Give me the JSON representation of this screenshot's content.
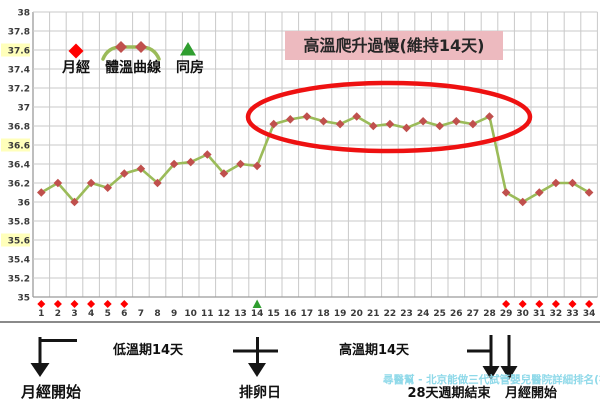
{
  "legend": {
    "menses_label": "月經",
    "curve_label": "體溫曲線",
    "intercourse_label": "同房"
  },
  "annotation_box": {
    "text": "高溫爬升過慢(維持14天)"
  },
  "footer": {
    "menses_start_left": "月經開始",
    "low_phase": "低溫期14天",
    "ovulation": "排卵日",
    "high_phase": "高溫期14天",
    "cycle_end": "28天週期結束",
    "menses_start_right": "月經開始"
  },
  "watermark": {
    "text": "尋醫幫 - 北京能做三代試管嬰兒醫院詳細排名(在北京"
  },
  "colors": {
    "line_green": "#9bbb59",
    "marker_red": "#c0504d",
    "menses_red": "#ff0000",
    "intercourse_green": "#2f9e2f",
    "ellipse_red": "#ee1111",
    "annotation_bg": "#edbabf",
    "highlight_yellow": "#ffffbb",
    "grid_gray": "#c9c9c9",
    "watermark_cyan": "#8fd9e9"
  },
  "chart_data": {
    "type": "line",
    "title": "",
    "xlabel": "",
    "ylabel": "",
    "xrange": [
      1,
      34
    ],
    "ylim": [
      35,
      38
    ],
    "ytick_step": 0.2,
    "highlighted_yticks": [
      37.6,
      36.6,
      35.6
    ],
    "grid": true,
    "x": [
      1,
      2,
      3,
      4,
      5,
      6,
      7,
      8,
      9,
      10,
      11,
      12,
      13,
      14,
      15,
      16,
      17,
      18,
      19,
      20,
      21,
      22,
      23,
      24,
      25,
      26,
      27,
      28,
      29,
      30,
      31,
      32,
      33,
      34
    ],
    "series": [
      {
        "name": "體溫曲線",
        "values": [
          36.1,
          36.2,
          36.0,
          36.2,
          36.15,
          36.3,
          36.35,
          36.2,
          36.4,
          36.42,
          36.5,
          36.3,
          36.4,
          36.38,
          36.82,
          36.87,
          36.9,
          36.85,
          36.82,
          36.9,
          36.8,
          36.82,
          36.78,
          36.85,
          36.8,
          36.85,
          36.82,
          36.9,
          36.1,
          36.0,
          36.1,
          36.2,
          36.2,
          36.1
        ]
      }
    ],
    "menses_days": [
      1,
      2,
      3,
      4,
      5,
      6,
      29,
      30,
      31,
      32,
      33,
      34
    ],
    "intercourse_days": [
      14
    ],
    "legend_position": "top-left"
  }
}
